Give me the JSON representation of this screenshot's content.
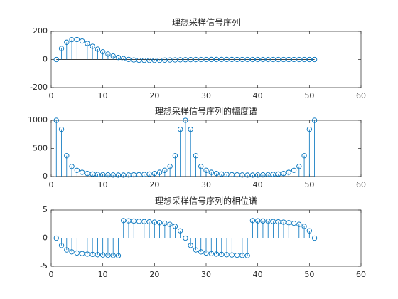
{
  "chart_data": [
    {
      "type": "stem",
      "title": "理想采样信号序列",
      "color": "#0072bd",
      "x": [
        1,
        2,
        3,
        4,
        5,
        6,
        7,
        8,
        9,
        10,
        11,
        12,
        13,
        14,
        15,
        16,
        17,
        18,
        19,
        20,
        21,
        22,
        23,
        24,
        25,
        26,
        27,
        28,
        29,
        30,
        31,
        32,
        33,
        34,
        35,
        36,
        37,
        38,
        39,
        40,
        41,
        42,
        43,
        44,
        45,
        46,
        47,
        48,
        49,
        50,
        51
      ],
      "values": [
        0,
        78.3,
        122.4,
        141.0,
        141.8,
        131.0,
        114.0,
        93.8,
        73.5,
        54.6,
        38.4,
        24.8,
        14.2,
        6.2,
        0.6,
        -3.0,
        -5.1,
        -6.0,
        -6.2,
        -5.8,
        -5.1,
        -4.2,
        -3.3,
        -2.5,
        -1.8,
        -1.2,
        -0.7,
        -0.3,
        -0.1,
        0.1,
        0.2,
        0.2,
        0.2,
        0.2,
        0.2,
        0.1,
        0.1,
        0.1,
        0,
        0,
        0,
        0,
        0,
        0,
        0,
        0,
        0,
        0,
        0,
        0,
        0
      ],
      "xlim": [
        0,
        60
      ],
      "xticks": [
        0,
        10,
        20,
        30,
        40,
        50,
        60
      ],
      "ylim": [
        -200,
        200
      ],
      "yticks": [
        -200,
        0,
        200
      ]
    },
    {
      "type": "stem",
      "title": "理想采样信号序列的幅度谱",
      "color": "#0072bd",
      "x": [
        1,
        2,
        3,
        4,
        5,
        6,
        7,
        8,
        9,
        10,
        11,
        12,
        13,
        14,
        15,
        16,
        17,
        18,
        19,
        20,
        21,
        22,
        23,
        24,
        25,
        26,
        27,
        28,
        29,
        30,
        31,
        32,
        33,
        34,
        35,
        36,
        37,
        38,
        39,
        40,
        41,
        42,
        43,
        44,
        45,
        46,
        47,
        48,
        49,
        50,
        51
      ],
      "values": [
        1000,
        840,
        370,
        180,
        110,
        75,
        55,
        45,
        38,
        33,
        30,
        28,
        26,
        26,
        28,
        30,
        33,
        38,
        45,
        55,
        75,
        110,
        180,
        370,
        840,
        1000,
        840,
        370,
        180,
        110,
        75,
        55,
        45,
        38,
        33,
        30,
        28,
        26,
        26,
        28,
        30,
        33,
        38,
        45,
        55,
        75,
        110,
        180,
        370,
        840,
        1000
      ],
      "xlim": [
        0,
        60
      ],
      "xticks": [
        0,
        10,
        20,
        30,
        40,
        50,
        60
      ],
      "ylim": [
        0,
        1000
      ],
      "yticks": [
        0,
        500,
        1000
      ]
    },
    {
      "type": "stem",
      "title": "理想采样信号序列的相位谱",
      "color": "#0072bd",
      "x": [
        1,
        2,
        3,
        4,
        5,
        6,
        7,
        8,
        9,
        10,
        11,
        12,
        13,
        14,
        15,
        16,
        17,
        18,
        19,
        20,
        21,
        22,
        23,
        24,
        25,
        26,
        27,
        28,
        29,
        30,
        31,
        32,
        33,
        34,
        35,
        36,
        37,
        38,
        39,
        40,
        41,
        42,
        43,
        44,
        45,
        46,
        47,
        48,
        49,
        50,
        51
      ],
      "values": [
        0,
        -1.3,
        -2.1,
        -2.45,
        -2.65,
        -2.75,
        -2.85,
        -2.9,
        -2.95,
        -3.0,
        -3.05,
        -3.08,
        -3.12,
        3.12,
        3.08,
        3.05,
        3.0,
        2.95,
        2.9,
        2.85,
        2.75,
        2.65,
        2.45,
        2.1,
        1.3,
        0,
        -1.3,
        -2.1,
        -2.45,
        -2.65,
        -2.75,
        -2.85,
        -2.9,
        -2.95,
        -3.0,
        -3.05,
        -3.08,
        -3.12,
        3.12,
        3.08,
        3.05,
        3.0,
        2.95,
        2.9,
        2.85,
        2.75,
        2.65,
        2.45,
        2.1,
        1.3,
        0
      ],
      "xlim": [
        0,
        60
      ],
      "xticks": [
        0,
        10,
        20,
        30,
        40,
        50,
        60
      ],
      "ylim": [
        -5,
        5
      ],
      "yticks": [
        -5,
        0,
        5
      ]
    }
  ]
}
